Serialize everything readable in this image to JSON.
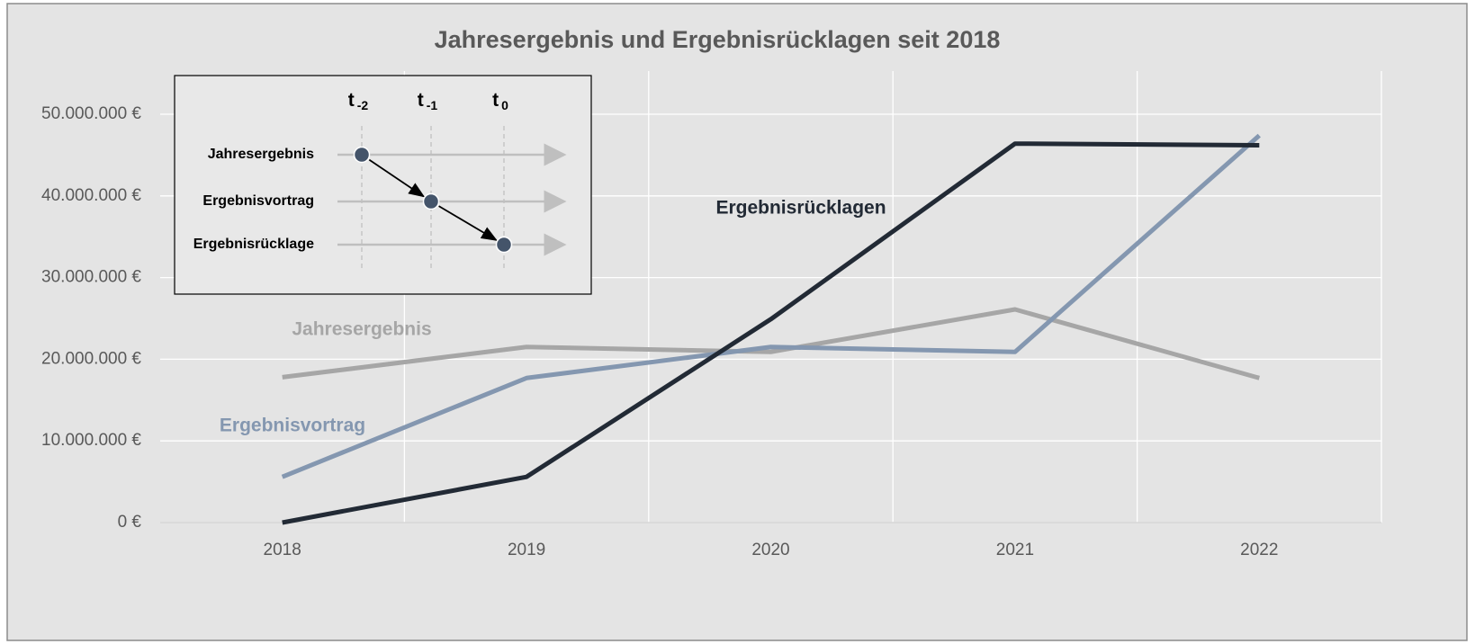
{
  "chart_data": {
    "type": "line",
    "title": "Jahresergebnis und Ergebnisrücklagen seit 2018",
    "categories": [
      "2018",
      "2019",
      "2020",
      "2021",
      "2022"
    ],
    "series": [
      {
        "name": "Jahresergebnis",
        "color": "#a6a6a6",
        "values": [
          17800000,
          21500000,
          20900000,
          26100000,
          17700000
        ]
      },
      {
        "name": "Ergebnisvortrag",
        "color": "#8497b0",
        "values": [
          5600000,
          17700000,
          21500000,
          20900000,
          47400000
        ]
      },
      {
        "name": "Ergebnisrücklagen",
        "color": "#222a35",
        "values": [
          0,
          5600000,
          24900000,
          46400000,
          46200000
        ]
      }
    ],
    "ylim": [
      0,
      50000000
    ],
    "yticks": [
      {
        "value": 0,
        "label": "0 €"
      },
      {
        "value": 10000000,
        "label": "10.000.000 €"
      },
      {
        "value": 20000000,
        "label": "20.000.000 €"
      },
      {
        "value": 30000000,
        "label": "30.000.000 €"
      },
      {
        "value": 40000000,
        "label": "40.000.000 €"
      },
      {
        "value": 50000000,
        "label": "50.000.000 €"
      }
    ],
    "grid": true,
    "inset": {
      "columns": [
        {
          "base": "t",
          "sub": "-2"
        },
        {
          "base": "t",
          "sub": "-1"
        },
        {
          "base": "t",
          "sub": "0"
        }
      ],
      "rows": [
        "Jahresergebnis",
        "Ergebnisvortrag",
        "Ergebnisrücklage"
      ]
    }
  }
}
